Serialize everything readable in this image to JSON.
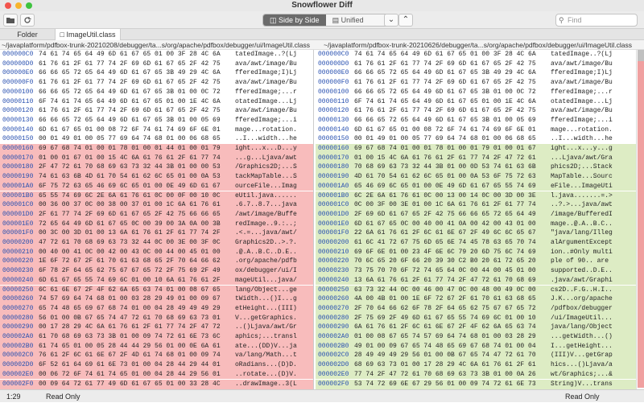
{
  "window": {
    "title": "Snowflower Diff"
  },
  "toolbar": {
    "side_by_side_label": "Side by Side",
    "unified_label": "Unified",
    "search_placeholder": "Find",
    "colors": {
      "active_segment": "#6b6b6b"
    }
  },
  "tabs": [
    {
      "label": "Folder"
    },
    {
      "label": "ImageUtil.class"
    }
  ],
  "paths": {
    "left": "~/javaplatform/pdfbox-trunk-20210208/debugger/ta...s/org/apache/pdfbox/debugger/ui/ImageUtil.class",
    "right": "~/javaplatform/pdfbox-trunk-20210626/debugger/ta...s/org/apache/pdfbox/debugger/ui/ImageUtil.class"
  },
  "colors": {
    "deleted": "#f8bcbc",
    "added": "#ddecc4",
    "offset": "#2850b0"
  },
  "left_rows": [
    {
      "off": "000000C0",
      "hex": "74 61 74 65 64 49 6D 61 67 65 01 00 3F 28 4C 6A",
      "asc": "tatedImage..?(Lj",
      "s": "eq"
    },
    {
      "off": "000000D0",
      "hex": "61 76 61 2F 61 77 74 2F 69 6D 61 67 65 2F 42 75",
      "asc": "ava/awt/image/Bu",
      "s": "eq"
    },
    {
      "off": "000000E0",
      "hex": "66 66 65 72 65 64 49 6D 61 67 65 3B 49 29 4C 6A",
      "asc": "fferedImage;I)Lj",
      "s": "eq"
    },
    {
      "off": "000000F0",
      "hex": "61 76 61 2F 61 77 74 2F 69 6D 61 67 65 2F 42 75",
      "asc": "ava/awt/image/Bu",
      "s": "eq"
    },
    {
      "off": "00000100",
      "hex": "66 66 65 72 65 64 49 6D 61 67 65 3B 01 00 0C 72",
      "asc": "fferedImage;...r",
      "s": "eq"
    },
    {
      "off": "00000110",
      "hex": "6F 74 61 74 65 64 49 6D 61 67 65 01 00 1E 4C 6A",
      "asc": "otatedImage...Lj",
      "s": "eq"
    },
    {
      "off": "00000120",
      "hex": "61 76 61 2F 61 77 74 2F 69 6D 61 67 65 2F 42 75",
      "asc": "ava/awt/image/Bu",
      "s": "eq"
    },
    {
      "off": "00000130",
      "hex": "66 66 65 72 65 64 49 6D 61 67 65 3B 01 00 05 69",
      "asc": "fferedImage;...i",
      "s": "eq"
    },
    {
      "off": "00000140",
      "hex": "6D 61 67 65 01 00 08 72 6F 74 61 74 69 6F 6E 01",
      "asc": "mage...rotation.",
      "s": "eq"
    },
    {
      "off": "00000150",
      "hex": "00 01 49 01 00 05 77 69 64 74 68 01 00 06 68 65",
      "asc": "..I...width...he",
      "s": "eq"
    },
    {
      "off": "00000160",
      "hex": "69 67 68 74 01 00 01 78 01 00 01 44 01 00 01 79",
      "asc": "ight...x...D...y",
      "s": "del"
    },
    {
      "off": "00000170",
      "hex": "01 00 01 67 01 00 15 4C 6A 61 76 61 2F 61 77 74",
      "asc": "...g...Ljava/awt",
      "s": "del"
    },
    {
      "off": "00000180",
      "hex": "2F 47 72 61 70 68 69 63 73 32 44 3B 01 00 00 53",
      "asc": "/Graphics2D;...S",
      "s": "del"
    },
    {
      "off": "00000190",
      "hex": "74 61 63 6B 4D 61 70 54 61 62 6C 65 01 00 0A 53",
      "asc": "tackMapTable...S",
      "s": "del"
    },
    {
      "off": "000001A0",
      "hex": "6F 75 72 63 65 46 69 6C 65 01 00 0E 49 6D 61 67",
      "asc": "ourceFile...Imag",
      "s": "del"
    },
    {
      "off": "000001B0",
      "hex": "65 55 74 69 6C 2E 6A 61 76 61 0C 00 0F 00 10 0C",
      "asc": "eUtil.java......",
      "s": "del"
    },
    {
      "off": "000001C0",
      "hex": "00 36 00 37 0C 00 38 00 37 01 00 1C 6A 61 76 61",
      "asc": ".6.7..8.7...java",
      "s": "del"
    },
    {
      "off": "000001D0",
      "hex": "2F 61 77 74 2F 69 6D 61 67 65 2F 42 75 66 66 65",
      "asc": "/awt/image/Buffe",
      "s": "del"
    },
    {
      "off": "000001E0",
      "hex": "72 65 64 49 6D 61 67 65 0C 00 39 00 3A 0A 00 3B",
      "asc": "redImage..9.:..;",
      "s": "del"
    },
    {
      "off": "000001F0",
      "hex": "00 3C 00 3D 01 00 13 6A 61 76 61 2F 61 77 74 2F",
      "asc": ".<.=...java/awt/",
      "s": "del"
    },
    {
      "off": "00000200",
      "hex": "47 72 61 70 68 69 63 73 32 44 0C 00 3E 00 3F 0C",
      "asc": "Graphics2D..>.?.",
      "s": "del"
    },
    {
      "off": "00000210",
      "hex": "00 40 00 41 0C 00 42 00 43 0C 00 44 00 45 01 00",
      "asc": ".@.A..B.C..D.E..",
      "s": "del"
    },
    {
      "off": "00000220",
      "hex": "1E 6F 72 67 2F 61 70 61 63 68 65 2F 70 64 66 62",
      "asc": ".org/apache/pdfb",
      "s": "del"
    },
    {
      "off": "00000230",
      "hex": "6F 78 2F 64 65 62 75 67 67 65 72 2F 75 69 2F 49",
      "asc": "ox/debugger/ui/I",
      "s": "del"
    },
    {
      "off": "00000240",
      "hex": "6D 61 67 65 55 74 69 6C 01 00 10 6A 61 76 61 2F",
      "asc": "mageUtil...java/",
      "s": "del"
    },
    {
      "off": "00000250",
      "hex": "6C 61 6E 67 2F 4F 62 6A 65 63 74 01 00 08 67 65",
      "asc": "lang/Object...ge",
      "s": "del"
    },
    {
      "off": "00000260",
      "hex": "74 57 69 64 74 68 01 00 03 28 29 49 01 00 09 67",
      "asc": "tWidth...()I...g",
      "s": "del"
    },
    {
      "off": "00000270",
      "hex": "65 74 48 65 69 67 68 74 01 00 04 28 49 49 49 29",
      "asc": "etHeight...(III)",
      "s": "del"
    },
    {
      "off": "00000280",
      "hex": "56 01 00 0B 67 65 74 47 72 61 70 68 69 63 73 01",
      "asc": "V...getGraphics.",
      "s": "del"
    },
    {
      "off": "00000290",
      "hex": "00 17 28 29 4C 6A 61 76 61 2F 61 77 74 2F 47 72",
      "asc": "..()Ljava/awt/Gr",
      "s": "del"
    },
    {
      "off": "000002A0",
      "hex": "61 70 68 69 63 73 3B 01 00 09 74 72 61 6E 73 6C",
      "asc": "aphics;...transl",
      "s": "del"
    },
    {
      "off": "000002B0",
      "hex": "61 74 65 01 00 05 28 44 44 29 56 01 00 0E 6A 61",
      "asc": "ate...(DD)V...ja",
      "s": "del"
    },
    {
      "off": "000002C0",
      "hex": "76 61 2F 6C 61 6E 67 2F 4D 61 74 68 01 00 09 74",
      "asc": "va/lang/Math...t",
      "s": "del"
    },
    {
      "off": "000002D0",
      "hex": "6F 52 61 64 69 61 6E 73 01 00 04 28 44 29 44 01",
      "asc": "oRadians...(D)D.",
      "s": "del"
    },
    {
      "off": "000002E0",
      "hex": "00 06 72 6F 74 61 74 65 01 00 04 28 44 29 56 01",
      "asc": "..rotate...(D)V.",
      "s": "del"
    },
    {
      "off": "000002F0",
      "hex": "00 09 64 72 61 77 49 6D 61 67 65 01 00 33 28 4C",
      "asc": "..drawImage..3(L",
      "s": "del"
    },
    {
      "off": "00000300",
      "hex": "6A 61 76 61 2F 61 77 74 2F 49 6D 61 67 65 3B 49",
      "asc": "java/awt/Image;I",
      "s": "del"
    }
  ],
  "right_rows": [
    {
      "off": "000000C0",
      "hex": "74 61 74 65 64 49 6D 61 67 65 01 00 3F 28 4C 6A",
      "asc": "tatedImage..?(Lj",
      "s": "eq"
    },
    {
      "off": "000000D0",
      "hex": "61 76 61 2F 61 77 74 2F 69 6D 61 67 65 2F 42 75",
      "asc": "ava/awt/image/Bu",
      "s": "eq"
    },
    {
      "off": "000000E0",
      "hex": "66 66 65 72 65 64 49 6D 61 67 65 3B 49 29 4C 6A",
      "asc": "fferedImage;I)Lj",
      "s": "eq"
    },
    {
      "off": "000000F0",
      "hex": "61 76 61 2F 61 77 74 2F 69 6D 61 67 65 2F 42 75",
      "asc": "ava/awt/image/Bu",
      "s": "eq"
    },
    {
      "off": "00000100",
      "hex": "66 66 65 72 65 64 49 6D 61 67 65 3B 01 00 0C 72",
      "asc": "fferedImage;...r",
      "s": "eq"
    },
    {
      "off": "00000110",
      "hex": "6F 74 61 74 65 64 49 6D 61 67 65 01 00 1E 4C 6A",
      "asc": "otatedImage...Lj",
      "s": "eq"
    },
    {
      "off": "00000120",
      "hex": "61 76 61 2F 61 77 74 2F 69 6D 61 67 65 2F 42 75",
      "asc": "ava/awt/image/Bu",
      "s": "eq"
    },
    {
      "off": "00000130",
      "hex": "66 66 65 72 65 64 49 6D 61 67 65 3B 01 00 05 69",
      "asc": "fferedImage;...i",
      "s": "eq"
    },
    {
      "off": "00000140",
      "hex": "6D 61 67 65 01 00 08 72 6F 74 61 74 69 6F 6E 01",
      "asc": "mage...rotation.",
      "s": "eq"
    },
    {
      "off": "00000150",
      "hex": "00 01 49 01 00 05 77 69 64 74 68 01 00 06 68 65",
      "asc": "..I...width...he",
      "s": "eq"
    },
    {
      "off": "00000160",
      "hex": "69 67 68 74 01 00 01 78 01 00 01 79 01 00 01 67",
      "asc": "ight...x...y...g",
      "s": "add"
    },
    {
      "off": "00000170",
      "hex": "01 00 15 4C 6A 61 76 61 2F 61 77 74 2F 47 72 61",
      "asc": "...Ljava/awt/Gra",
      "s": "add"
    },
    {
      "off": "00000180",
      "hex": "70 68 69 63 73 32 44 3B 01 00 0D 53 74 61 63 6B",
      "asc": "phics2D;...Stack",
      "s": "add"
    },
    {
      "off": "00000190",
      "hex": "4D 61 70 54 61 62 6C 65 01 00 0A 53 6F 75 72 63",
      "asc": "MapTable...Sourc",
      "s": "add"
    },
    {
      "off": "000001A0",
      "hex": "65 46 69 6C 65 01 00 0E 49 6D 61 67 65 55 74 69",
      "asc": "eFile...ImageUti",
      "s": "add"
    },
    {
      "off": "000001B0",
      "hex": "6C 2E 6A 61 76 61 0C 00 13 00 14 0C 00 3D 00 3E",
      "asc": "l.java.......=.>",
      "s": "add"
    },
    {
      "off": "000001C0",
      "hex": "0C 00 3F 00 3E 01 00 1C 6A 61 76 61 2F 61 77 74",
      "asc": "..?.>...java/awt",
      "s": "add"
    },
    {
      "off": "000001D0",
      "hex": "2F 69 6D 61 67 65 2F 42 75 66 66 65 72 65 64 49",
      "asc": "/image/BufferedI",
      "s": "add"
    },
    {
      "off": "000001E0",
      "hex": "6D 61 67 65 0C 00 40 00 41 0A 00 42 00 43 01 00",
      "asc": "mage..@.A..B.C..",
      "s": "add"
    },
    {
      "off": "000001F0",
      "hex": "22 6A 61 76 61 2F 6C 61 6E 67 2F 49 6C 6C 65 67",
      "asc": "\"java/lang/Illeg",
      "s": "add"
    },
    {
      "off": "00000200",
      "hex": "61 6C 41 72 67 75 6D 65 6E 74 45 78 63 65 70 74",
      "asc": "alArgumentExcept",
      "s": "add"
    },
    {
      "off": "00000210",
      "hex": "69 6F 6E 01 00 23 4F 6E 6C 79 20 6D 75 6C 74 69",
      "asc": "ion..#Only multi",
      "s": "add"
    },
    {
      "off": "00000220",
      "hex": "70 6C 65 20 6F 66 20 39 30 C2 B0 20 61 72 65 20",
      "asc": "ple of 90.. are ",
      "s": "add"
    },
    {
      "off": "00000230",
      "hex": "73 75 70 70 6F 72 74 65 64 0C 00 44 00 45 01 00",
      "asc": "supported..D.E..",
      "s": "add"
    },
    {
      "off": "00000240",
      "hex": "13 6A 61 76 61 2F 61 77 74 2F 47 72 61 70 68 69",
      "asc": ".java/awt/Graphi",
      "s": "add"
    },
    {
      "off": "00000250",
      "hex": "63 73 32 44 0C 00 46 00 47 0C 00 48 00 49 0C 00",
      "asc": "cs2D..F.G..H.I..",
      "s": "add"
    },
    {
      "off": "00000260",
      "hex": "4A 00 4B 01 00 1E 6F 72 67 2F 61 70 61 63 68 65",
      "asc": "J.K...org/apache",
      "s": "add"
    },
    {
      "off": "00000270",
      "hex": "2F 70 64 66 62 6F 78 2F 64 65 62 75 67 67 65 72",
      "asc": "/pdfbox/debugger",
      "s": "add"
    },
    {
      "off": "00000280",
      "hex": "2F 75 69 2F 49 6D 61 67 65 55 74 69 6C 01 00 10",
      "asc": "/ui/ImageUtil...",
      "s": "add"
    },
    {
      "off": "00000290",
      "hex": "6A 61 76 61 2F 6C 61 6E 67 2F 4F 62 6A 65 63 74",
      "asc": "java/lang/Object",
      "s": "add"
    },
    {
      "off": "000002A0",
      "hex": "01 00 08 67 65 74 57 69 64 74 68 01 00 03 28 29",
      "asc": "...getWidth...()",
      "s": "add"
    },
    {
      "off": "000002B0",
      "hex": "49 01 00 09 67 65 74 48 65 69 67 68 74 01 00 04",
      "asc": "I...getHeight...",
      "s": "add"
    },
    {
      "off": "000002C0",
      "hex": "28 49 49 49 29 56 01 00 0B 67 65 74 47 72 61 70",
      "asc": "(III)V...getGrap",
      "s": "add"
    },
    {
      "off": "000002D0",
      "hex": "68 69 63 73 01 00 17 28 29 4C 6A 61 76 61 2F 61",
      "asc": "hics...()Ljava/a",
      "s": "add"
    },
    {
      "off": "000002E0",
      "hex": "77 74 2F 47 72 61 70 68 69 63 73 3B 01 00 0A 26",
      "asc": "wt/Graphics;...&",
      "s": "add"
    },
    {
      "off": "000002F0",
      "hex": "53 74 72 69 6E 67 29 56 01 00 09 74 72 61 6E 73",
      "asc": "String)V...trans",
      "s": "add"
    },
    {
      "off": "00000300",
      "hex": "6C 61 74 65 01 00 05 28 44 44 29 56 01 00 0E 6A",
      "asc": "late...(DD)V...j",
      "s": "add"
    }
  ],
  "status": {
    "position": "1:29",
    "left_mode": "Read Only",
    "right_mode": "Read Only"
  }
}
